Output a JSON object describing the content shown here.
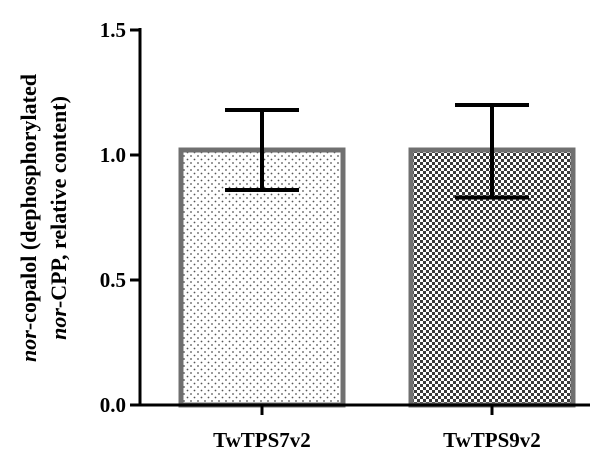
{
  "chart_data": {
    "type": "bar",
    "categories": [
      "TwTPS7v2",
      "TwTPS9v2"
    ],
    "values": [
      1.02,
      1.02
    ],
    "error_upper": [
      1.18,
      1.2
    ],
    "error_lower": [
      0.86,
      0.83
    ],
    "ylim": [
      0,
      1.5
    ],
    "yticks": [
      "0.0",
      "0.5",
      "1.0",
      "1.5"
    ],
    "ylabel": {
      "line1": {
        "italic": "nor",
        "rest": "-copalol (dephosphorylated"
      },
      "line2": {
        "italic": "nor",
        "rest": "-CPP, relative content)"
      }
    },
    "xlabel": "",
    "title": "",
    "grid": false,
    "colors": {
      "bar_outline": "#707070",
      "pattern_1_dots": "#555555",
      "pattern_2_checks": "#3a3a3a",
      "axis": "#000000"
    }
  }
}
